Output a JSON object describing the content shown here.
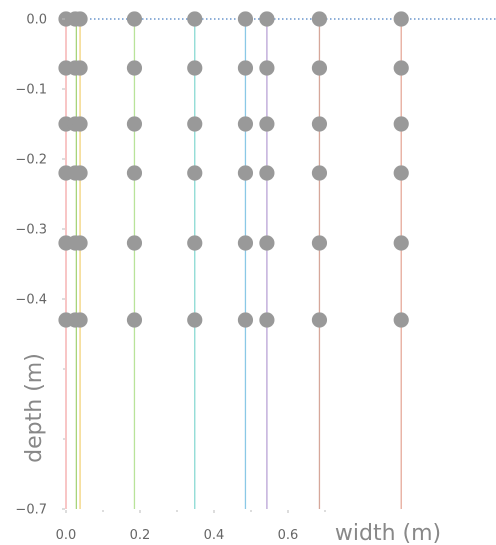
{
  "chart_data": {
    "type": "scatter",
    "xlabel": "width (m)",
    "ylabel": "depth (m)",
    "xlim": [
      0.0,
      0.72
    ],
    "ylim": [
      -0.7,
      0.0
    ],
    "x_ticks": [
      0.0,
      0.2,
      0.4,
      0.6
    ],
    "x_tick_labels": [
      "0.0",
      "0.2",
      "0.4",
      "0.6"
    ],
    "y_ticks": [
      0.0,
      -0.1,
      -0.2,
      -0.3,
      -0.4,
      -0.7
    ],
    "y_tick_labels": [
      "0.0",
      "−0.1",
      "−0.2",
      "−0.3",
      "−0.4",
      "−0.7"
    ],
    "reference_line": {
      "y": 0.0,
      "style": "dotted",
      "color": "#4a7fc1"
    },
    "vertical_lines": [
      {
        "x": 0.0,
        "color": "#f4a7a7"
      },
      {
        "x": 0.028,
        "color": "#a8d47a"
      },
      {
        "x": 0.038,
        "color": "#f2d27a"
      },
      {
        "x": 0.185,
        "color": "#b9e39a"
      },
      {
        "x": 0.348,
        "color": "#8ad9d3"
      },
      {
        "x": 0.485,
        "color": "#8ac8e6"
      },
      {
        "x": 0.543,
        "color": "#b9a3d6"
      },
      {
        "x": 0.685,
        "color": "#d6a79a"
      },
      {
        "x": 0.906,
        "color": "#e6a89a"
      }
    ],
    "point_color": "#999999",
    "depths": [
      0.0,
      -0.07,
      -0.15,
      -0.22,
      -0.32,
      -0.43
    ],
    "point_x": [
      0.0,
      0.025,
      0.038,
      0.185,
      0.348,
      0.485,
      0.543,
      0.685,
      0.906
    ]
  }
}
